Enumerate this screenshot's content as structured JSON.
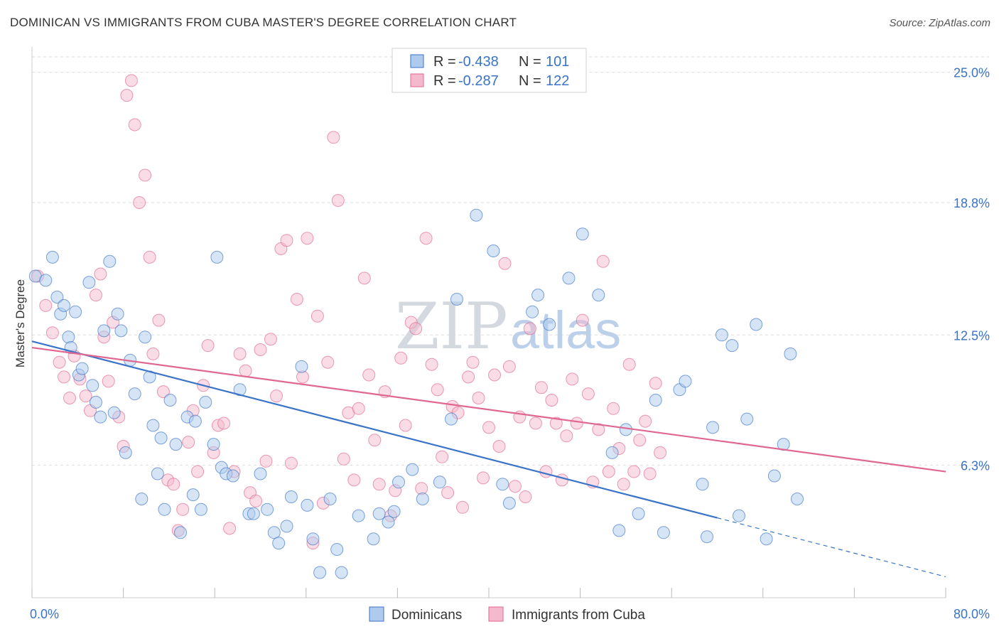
{
  "title": "DOMINICAN VS IMMIGRANTS FROM CUBA MASTER'S DEGREE CORRELATION CHART",
  "source": "Source: ZipAtlas.com",
  "watermark": {
    "zip": "ZIP",
    "atlas": "atlas"
  },
  "colors": {
    "blue": "#3a73c8",
    "blue_fill": "#aecbee",
    "pink": "#e0678f",
    "pink_fill": "#f4b9cc",
    "grid": "#dddddd"
  },
  "legend": {
    "r_label": "R =",
    "n_label": "N =",
    "rows": [
      {
        "series": "blue",
        "r": "-0.438",
        "n": "101"
      },
      {
        "series": "pink",
        "r": "-0.287",
        "n": "122"
      }
    ]
  },
  "bottom_legend": {
    "series1": "Dominicans",
    "series2": "Immigrants from Cuba"
  },
  "chart_data": {
    "type": "scatter",
    "title": "DOMINICAN VS IMMIGRANTS FROM CUBA MASTER'S DEGREE CORRELATION CHART",
    "xlabel": "",
    "ylabel": "Master's Degree",
    "xlim": [
      0,
      80
    ],
    "ylim": [
      0,
      26
    ],
    "x_tick_labels": [
      "0.0%",
      "80.0%"
    ],
    "y_ticks": [
      6.3,
      12.5,
      18.8,
      25.0
    ],
    "y_tick_labels": [
      "6.3%",
      "12.5%",
      "18.8%",
      "25.0%"
    ],
    "series": [
      {
        "name": "Dominicans",
        "color": "blue",
        "trend": {
          "x0": 0,
          "y0": 12.2,
          "x1": 60,
          "y1": 3.8,
          "dash_to_x": 80,
          "dash_to_y": 1.0
        },
        "points": [
          [
            0.3,
            15.3
          ],
          [
            1.2,
            15.1
          ],
          [
            1.8,
            16.2
          ],
          [
            2.2,
            14.3
          ],
          [
            2.5,
            13.5
          ],
          [
            2.8,
            13.9
          ],
          [
            3.2,
            12.4
          ],
          [
            3.4,
            11.9
          ],
          [
            3.8,
            13.6
          ],
          [
            4.1,
            10.6
          ],
          [
            4.4,
            10.9
          ],
          [
            5.0,
            15.0
          ],
          [
            5.3,
            10.1
          ],
          [
            5.6,
            9.3
          ],
          [
            6.0,
            8.6
          ],
          [
            6.3,
            12.7
          ],
          [
            6.8,
            16.0
          ],
          [
            7.2,
            8.8
          ],
          [
            7.5,
            13.5
          ],
          [
            7.8,
            12.7
          ],
          [
            8.2,
            6.9
          ],
          [
            8.6,
            11.3
          ],
          [
            9.0,
            9.7
          ],
          [
            9.6,
            4.7
          ],
          [
            9.9,
            12.4
          ],
          [
            10.3,
            10.5
          ],
          [
            10.6,
            8.2
          ],
          [
            11.0,
            5.9
          ],
          [
            11.3,
            7.6
          ],
          [
            11.6,
            4.2
          ],
          [
            12.1,
            9.4
          ],
          [
            12.6,
            7.3
          ],
          [
            13.0,
            3.1
          ],
          [
            13.6,
            8.6
          ],
          [
            14.1,
            4.9
          ],
          [
            14.3,
            8.4
          ],
          [
            14.8,
            4.2
          ],
          [
            15.2,
            9.3
          ],
          [
            15.9,
            7.3
          ],
          [
            16.2,
            16.2
          ],
          [
            16.6,
            6.2
          ],
          [
            17.0,
            5.9
          ],
          [
            17.6,
            5.8
          ],
          [
            18.2,
            9.9
          ],
          [
            19.0,
            4.0
          ],
          [
            19.4,
            4.0
          ],
          [
            20.0,
            5.9
          ],
          [
            20.6,
            4.2
          ],
          [
            21.2,
            3.1
          ],
          [
            21.6,
            2.6
          ],
          [
            22.3,
            3.4
          ],
          [
            22.7,
            4.8
          ],
          [
            23.6,
            11.0
          ],
          [
            24.1,
            4.4
          ],
          [
            24.6,
            2.8
          ],
          [
            25.2,
            1.2
          ],
          [
            26.1,
            4.7
          ],
          [
            26.7,
            2.3
          ],
          [
            27.1,
            1.2
          ],
          [
            28.6,
            3.9
          ],
          [
            29.9,
            2.8
          ],
          [
            30.4,
            4.0
          ],
          [
            31.2,
            3.6
          ],
          [
            31.7,
            4.1
          ],
          [
            32.1,
            5.5
          ],
          [
            33.3,
            6.1
          ],
          [
            34.2,
            4.7
          ],
          [
            35.7,
            5.5
          ],
          [
            36.7,
            8.5
          ],
          [
            37.2,
            14.2
          ],
          [
            38.9,
            18.2
          ],
          [
            40.4,
            16.5
          ],
          [
            41.2,
            5.4
          ],
          [
            41.8,
            4.5
          ],
          [
            43.8,
            13.6
          ],
          [
            44.3,
            14.4
          ],
          [
            45.3,
            13.0
          ],
          [
            47.0,
            15.2
          ],
          [
            48.2,
            17.3
          ],
          [
            49.6,
            14.4
          ],
          [
            50.8,
            6.9
          ],
          [
            51.4,
            3.2
          ],
          [
            52.0,
            8.0
          ],
          [
            53.1,
            4.0
          ],
          [
            54.6,
            9.4
          ],
          [
            55.3,
            3.1
          ],
          [
            56.7,
            9.9
          ],
          [
            57.2,
            10.3
          ],
          [
            58.7,
            5.4
          ],
          [
            59.1,
            2.9
          ],
          [
            59.6,
            8.1
          ],
          [
            60.4,
            12.5
          ],
          [
            61.3,
            12.0
          ],
          [
            61.9,
            3.9
          ],
          [
            62.6,
            8.5
          ],
          [
            63.4,
            13.0
          ],
          [
            64.3,
            2.8
          ],
          [
            65.0,
            5.8
          ],
          [
            65.8,
            7.3
          ],
          [
            66.4,
            11.6
          ],
          [
            67.0,
            4.7
          ]
        ]
      },
      {
        "name": "Immigrants from Cuba",
        "color": "pink",
        "trend": {
          "x0": 0,
          "y0": 11.9,
          "x1": 80,
          "y1": 6.0
        },
        "points": [
          [
            0.5,
            15.3
          ],
          [
            1.2,
            13.9
          ],
          [
            1.8,
            12.6
          ],
          [
            2.4,
            11.2
          ],
          [
            2.8,
            10.5
          ],
          [
            3.3,
            9.5
          ],
          [
            3.7,
            11.5
          ],
          [
            4.2,
            10.4
          ],
          [
            4.7,
            9.6
          ],
          [
            5.1,
            8.9
          ],
          [
            5.6,
            14.4
          ],
          [
            6.0,
            15.4
          ],
          [
            6.3,
            12.4
          ],
          [
            6.7,
            10.3
          ],
          [
            7.1,
            13.1
          ],
          [
            7.6,
            8.6
          ],
          [
            8.0,
            7.2
          ],
          [
            8.3,
            23.9
          ],
          [
            8.7,
            24.6
          ],
          [
            9.0,
            22.5
          ],
          [
            9.4,
            18.8
          ],
          [
            9.9,
            20.1
          ],
          [
            10.3,
            16.2
          ],
          [
            10.6,
            11.6
          ],
          [
            11.1,
            13.2
          ],
          [
            11.5,
            9.8
          ],
          [
            11.9,
            5.6
          ],
          [
            12.4,
            5.4
          ],
          [
            12.8,
            3.2
          ],
          [
            13.2,
            4.2
          ],
          [
            13.7,
            7.4
          ],
          [
            14.1,
            8.9
          ],
          [
            14.5,
            6.0
          ],
          [
            15.0,
            10.1
          ],
          [
            15.4,
            12.0
          ],
          [
            15.9,
            6.9
          ],
          [
            16.3,
            8.2
          ],
          [
            16.8,
            8.3
          ],
          [
            17.3,
            3.3
          ],
          [
            17.7,
            6.0
          ],
          [
            18.2,
            11.6
          ],
          [
            18.7,
            10.8
          ],
          [
            19.1,
            5.0
          ],
          [
            19.6,
            4.6
          ],
          [
            20.0,
            11.8
          ],
          [
            20.5,
            6.5
          ],
          [
            20.9,
            12.3
          ],
          [
            21.4,
            9.6
          ],
          [
            21.8,
            16.6
          ],
          [
            22.3,
            17.0
          ],
          [
            22.7,
            6.4
          ],
          [
            23.2,
            14.2
          ],
          [
            23.7,
            10.5
          ],
          [
            24.1,
            17.1
          ],
          [
            24.6,
            2.6
          ],
          [
            25.0,
            13.4
          ],
          [
            25.5,
            4.5
          ],
          [
            25.9,
            11.2
          ],
          [
            26.4,
            21.9
          ],
          [
            26.8,
            18.9
          ],
          [
            27.3,
            6.6
          ],
          [
            27.7,
            8.8
          ],
          [
            28.2,
            5.6
          ],
          [
            28.6,
            9.0
          ],
          [
            29.1,
            15.2
          ],
          [
            29.5,
            10.6
          ],
          [
            30.0,
            7.5
          ],
          [
            30.4,
            5.4
          ],
          [
            30.9,
            9.8
          ],
          [
            31.4,
            3.9
          ],
          [
            31.8,
            5.1
          ],
          [
            32.3,
            11.4
          ],
          [
            32.7,
            8.2
          ],
          [
            33.2,
            13.1
          ],
          [
            33.6,
            12.8
          ],
          [
            34.1,
            5.2
          ],
          [
            34.5,
            17.1
          ],
          [
            35.0,
            11.1
          ],
          [
            35.5,
            9.9
          ],
          [
            35.9,
            6.7
          ],
          [
            36.4,
            5.0
          ],
          [
            36.8,
            9.1
          ],
          [
            37.3,
            8.8
          ],
          [
            37.7,
            4.3
          ],
          [
            38.2,
            10.5
          ],
          [
            38.6,
            11.2
          ],
          [
            39.1,
            9.5
          ],
          [
            39.5,
            5.7
          ],
          [
            40.0,
            8.1
          ],
          [
            40.5,
            10.6
          ],
          [
            40.9,
            7.2
          ],
          [
            41.4,
            15.9
          ],
          [
            41.8,
            11.0
          ],
          [
            42.3,
            5.3
          ],
          [
            42.7,
            8.6
          ],
          [
            43.2,
            4.8
          ],
          [
            43.6,
            12.8
          ],
          [
            44.1,
            8.3
          ],
          [
            44.6,
            10.0
          ],
          [
            45.0,
            6.0
          ],
          [
            45.5,
            9.4
          ],
          [
            45.9,
            8.3
          ],
          [
            46.4,
            5.6
          ],
          [
            46.8,
            7.7
          ],
          [
            47.3,
            10.4
          ],
          [
            47.7,
            8.3
          ],
          [
            48.2,
            13.2
          ],
          [
            48.7,
            9.7
          ],
          [
            49.1,
            5.5
          ],
          [
            49.6,
            8.0
          ],
          [
            50.0,
            16.0
          ],
          [
            50.5,
            6.0
          ],
          [
            50.9,
            9.0
          ],
          [
            51.4,
            7.1
          ],
          [
            51.8,
            5.4
          ],
          [
            52.3,
            11.1
          ],
          [
            52.7,
            6.0
          ],
          [
            53.2,
            7.5
          ],
          [
            53.7,
            8.4
          ],
          [
            54.1,
            5.9
          ],
          [
            54.6,
            10.2
          ],
          [
            55.0,
            6.9
          ]
        ]
      }
    ]
  }
}
